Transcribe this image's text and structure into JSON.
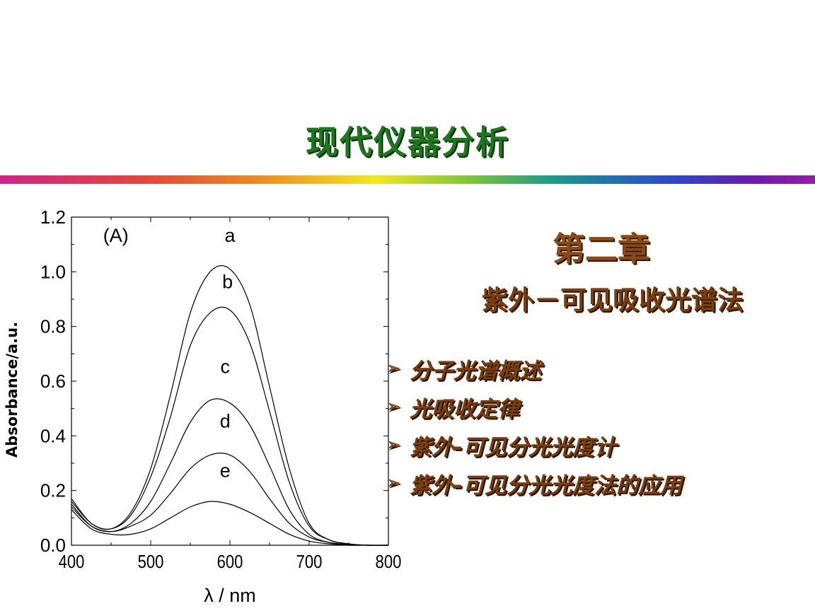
{
  "slide": {
    "title": "现代仪器分析",
    "chapter": "第二章",
    "subtitle": "紫外－可见吸收光谱法",
    "topics": [
      {
        "icon": "arrow-icon",
        "label": "分子光谱概述"
      },
      {
        "icon": "arrow-icon",
        "label": "光吸收定律"
      },
      {
        "icon": "arrow-icon",
        "label": "紫外-可见分光光度计"
      },
      {
        "icon": "arrow-icon",
        "label": "紫外-可见分光光度法的应用"
      }
    ],
    "colors": {
      "title": "#1a7a1a",
      "chapter": "#8b4a10",
      "text": "#7a3e0a"
    }
  },
  "chart_data": {
    "type": "line",
    "panel_label": "(A)",
    "xlabel": "λ / nm",
    "ylabel": "Absorbance/a.u.",
    "xlim": [
      400,
      800
    ],
    "ylim": [
      0.0,
      1.2
    ],
    "x_ticks": [
      "400",
      "500",
      "600",
      "700",
      "800"
    ],
    "y_ticks": [
      "0.0",
      "0.2",
      "0.4",
      "0.6",
      "0.8",
      "1.0",
      "1.2"
    ],
    "grid": false,
    "x": [
      400,
      425,
      450,
      475,
      500,
      525,
      550,
      575,
      600,
      625,
      650,
      675,
      700,
      725,
      750,
      775,
      800
    ],
    "series": [
      {
        "name": "a",
        "values": [
          0.17,
          0.08,
          0.06,
          0.12,
          0.28,
          0.55,
          0.85,
          1.0,
          1.01,
          0.88,
          0.58,
          0.28,
          0.08,
          0.02,
          0.005,
          0.0,
          0.0
        ]
      },
      {
        "name": "b",
        "values": [
          0.16,
          0.08,
          0.06,
          0.11,
          0.25,
          0.47,
          0.73,
          0.85,
          0.86,
          0.74,
          0.49,
          0.23,
          0.07,
          0.02,
          0.005,
          0.0,
          0.0
        ]
      },
      {
        "name": "c",
        "values": [
          0.15,
          0.07,
          0.05,
          0.08,
          0.16,
          0.3,
          0.45,
          0.53,
          0.52,
          0.44,
          0.29,
          0.13,
          0.04,
          0.01,
          0.003,
          0.0,
          0.0
        ]
      },
      {
        "name": "d",
        "values": [
          0.14,
          0.07,
          0.05,
          0.07,
          0.11,
          0.19,
          0.28,
          0.33,
          0.33,
          0.27,
          0.17,
          0.08,
          0.03,
          0.01,
          0.002,
          0.0,
          0.0
        ]
      },
      {
        "name": "e",
        "values": [
          0.13,
          0.06,
          0.04,
          0.04,
          0.06,
          0.1,
          0.14,
          0.16,
          0.15,
          0.12,
          0.08,
          0.04,
          0.015,
          0.005,
          0.0,
          0.0,
          0.0
        ]
      }
    ],
    "curve_labels": [
      {
        "name": "a",
        "x": 600,
        "y": 1.11
      },
      {
        "name": "b",
        "x": 597,
        "y": 0.94
      },
      {
        "name": "c",
        "x": 594,
        "y": 0.63
      },
      {
        "name": "d",
        "x": 594,
        "y": 0.43
      },
      {
        "name": "e",
        "x": 594,
        "y": 0.25
      }
    ]
  }
}
